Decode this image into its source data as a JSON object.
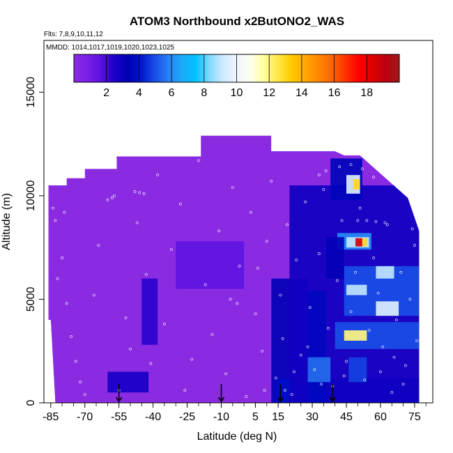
{
  "chart_data": {
    "type": "heatmap",
    "title": "ATOM3 Northbound x2ButONO2_WAS",
    "flights_note": "Flts: 7,8,9,10,11,12",
    "dates_note": "MMDD: 1014,1017,1019,1020,1023,1025",
    "xlabel": "Latitude (deg N)",
    "ylabel": "Altitude (m)",
    "xlim": [
      -88,
      83
    ],
    "ylim": [
      0,
      17500
    ],
    "x_ticks": [
      -85,
      -70,
      -55,
      -40,
      -25,
      -10,
      5,
      15,
      30,
      45,
      60,
      75
    ],
    "x_tick_labels": [
      "-85",
      "-70",
      "-55",
      "-40",
      "-25",
      "-10",
      "5",
      "15",
      "30",
      "45",
      "60",
      "75"
    ],
    "x_minor_ticks": [
      -80,
      -75,
      -65,
      -60,
      -50,
      -45,
      -35,
      -30,
      -20,
      -15,
      -5,
      0,
      10,
      20,
      25,
      35,
      40,
      50,
      55,
      65,
      70,
      80
    ],
    "y_ticks": [
      0,
      5000,
      10000,
      15000
    ],
    "y_tick_labels": [
      "0",
      "5000",
      "10000",
      "15000"
    ],
    "colorbar": {
      "min": 0,
      "max": 20,
      "ticks": [
        2,
        4,
        6,
        8,
        10,
        12,
        14,
        16,
        18
      ],
      "tick_labels": [
        "2",
        "4",
        "6",
        "8",
        "10",
        "12",
        "14",
        "16",
        "18"
      ],
      "colors": [
        "#8a2be2",
        "#7a1fe6",
        "#5a10e0",
        "#1a00c8",
        "#0000b4",
        "#0018d2",
        "#1a4ee6",
        "#2a82f4",
        "#1aaaf8",
        "#00c4ff",
        "#80d8ff",
        "#cfeaff",
        "#f0f4ff",
        "#fffff0",
        "#ffffa0",
        "#ffe84a",
        "#ffcc00",
        "#ffaa00",
        "#ff8800",
        "#ff6600",
        "#ff3300",
        "#ff0000",
        "#dd0000",
        "#bb0010",
        "#a01818"
      ]
    },
    "envelope_top": [
      {
        "lat": -86,
        "alt": 10500
      },
      {
        "lat": -78,
        "alt": 10500
      },
      {
        "lat": -78,
        "alt": 10850
      },
      {
        "lat": -70,
        "alt": 10850
      },
      {
        "lat": -70,
        "alt": 11300
      },
      {
        "lat": -56,
        "alt": 11300
      },
      {
        "lat": -56,
        "alt": 11900
      },
      {
        "lat": -19,
        "alt": 11900
      },
      {
        "lat": -19,
        "alt": 12900
      },
      {
        "lat": 12,
        "alt": 12900
      },
      {
        "lat": 12,
        "alt": 12150
      },
      {
        "lat": 40,
        "alt": 12150
      },
      {
        "lat": 44,
        "alt": 11950
      },
      {
        "lat": 51,
        "alt": 11950
      },
      {
        "lat": 72,
        "alt": 9900
      },
      {
        "lat": 77,
        "alt": 8300
      },
      {
        "lat": 77,
        "alt": 0
      }
    ],
    "envelope_bottom_left": [
      {
        "lat": -86,
        "alt": 10500
      },
      {
        "lat": -86,
        "alt": 4000
      },
      {
        "lat": -85,
        "alt": 4000
      },
      {
        "lat": -83,
        "alt": 0
      }
    ],
    "features": [
      {
        "lat_min": -60,
        "lat_max": -42,
        "alt_min": 500,
        "alt_max": 1500,
        "value": 2.6
      },
      {
        "lat_min": -45,
        "lat_max": -38,
        "alt_min": 2800,
        "alt_max": 6000,
        "value": 2.3
      },
      {
        "lat_min": -30,
        "lat_max": 0,
        "alt_min": 5500,
        "alt_max": 7800,
        "value": 1.5
      },
      {
        "lat_min": 12,
        "lat_max": 28,
        "alt_min": 0,
        "alt_max": 6000,
        "value": 3.2
      },
      {
        "lat_min": 14,
        "lat_max": 77,
        "alt_min": 0,
        "alt_max": 1200,
        "value": 3.8
      },
      {
        "lat_min": 20,
        "lat_max": 77,
        "alt_min": 0,
        "alt_max": 10500,
        "value": 2.8
      },
      {
        "lat_min": 28,
        "lat_max": 36,
        "alt_min": 0,
        "alt_max": 5400,
        "value": 3.6
      },
      {
        "lat_min": 28,
        "lat_max": 38,
        "alt_min": 1000,
        "alt_max": 2200,
        "value": 5.5
      },
      {
        "lat_min": 38,
        "lat_max": 52,
        "alt_min": 9800,
        "alt_max": 11800,
        "value": 3.5
      },
      {
        "lat_min": 45,
        "lat_max": 51,
        "alt_min": 10100,
        "alt_max": 11000,
        "value": 9.5
      },
      {
        "lat_min": 48,
        "lat_max": 51,
        "alt_min": 10300,
        "alt_max": 10800,
        "value": 13.0
      },
      {
        "lat_min": 41,
        "lat_max": 56,
        "alt_min": 7400,
        "alt_max": 8200,
        "value": 6.0
      },
      {
        "lat_min": 45,
        "lat_max": 55,
        "alt_min": 7500,
        "alt_max": 8000,
        "value": 9.0
      },
      {
        "lat_min": 49,
        "lat_max": 52,
        "alt_min": 7550,
        "alt_max": 7950,
        "value": 18.5
      },
      {
        "lat_min": 52,
        "lat_max": 54,
        "alt_min": 7550,
        "alt_max": 7950,
        "value": 13.0
      },
      {
        "lat_min": 44,
        "lat_max": 77,
        "alt_min": 4200,
        "alt_max": 6600,
        "value": 5.0
      },
      {
        "lat_min": 45,
        "lat_max": 54,
        "alt_min": 5200,
        "alt_max": 5700,
        "value": 9.0
      },
      {
        "lat_min": 58,
        "lat_max": 68,
        "alt_min": 4200,
        "alt_max": 4900,
        "value": 9.5
      },
      {
        "lat_min": 40,
        "lat_max": 77,
        "alt_min": 2600,
        "alt_max": 3900,
        "value": 5.0
      },
      {
        "lat_min": 44,
        "lat_max": 54,
        "alt_min": 3000,
        "alt_max": 3500,
        "value": 12.0
      },
      {
        "lat_min": 58,
        "lat_max": 66,
        "alt_min": 6000,
        "alt_max": 6600,
        "value": 9.0
      },
      {
        "lat_min": 46,
        "lat_max": 54,
        "alt_min": 1000,
        "alt_max": 2200,
        "value": 4.8
      },
      {
        "lat_min": 36,
        "lat_max": 44,
        "alt_min": 6000,
        "alt_max": 8000,
        "value": 3.2
      }
    ],
    "sample_points": [
      {
        "lat": -84,
        "alt": 9400
      },
      {
        "lat": -83,
        "alt": 8800
      },
      {
        "lat": -79,
        "alt": 9200
      },
      {
        "lat": -80,
        "alt": 7000
      },
      {
        "lat": -82,
        "alt": 6000
      },
      {
        "lat": -78,
        "alt": 4800
      },
      {
        "lat": -76,
        "alt": 3200
      },
      {
        "lat": -74,
        "alt": 2000
      },
      {
        "lat": -72,
        "alt": 1000
      },
      {
        "lat": -70,
        "alt": 400
      },
      {
        "lat": -66,
        "alt": 5200
      },
      {
        "lat": -64,
        "alt": 7600
      },
      {
        "lat": -60,
        "alt": 9800
      },
      {
        "lat": -58,
        "alt": 9900
      },
      {
        "lat": -57,
        "alt": 10000
      },
      {
        "lat": -55,
        "alt": 600
      },
      {
        "lat": -52,
        "alt": 4100
      },
      {
        "lat": -50,
        "alt": 2600
      },
      {
        "lat": -47,
        "alt": 8700
      },
      {
        "lat": -43,
        "alt": 6200
      },
      {
        "lat": -41,
        "alt": 1900
      },
      {
        "lat": -38,
        "alt": 11000
      },
      {
        "lat": -35,
        "alt": 3800
      },
      {
        "lat": -32,
        "alt": 7400
      },
      {
        "lat": -28,
        "alt": 9600
      },
      {
        "lat": -26,
        "alt": 600
      },
      {
        "lat": -23,
        "alt": 2100
      },
      {
        "lat": -20,
        "alt": 11700
      },
      {
        "lat": -17,
        "alt": 5700
      },
      {
        "lat": -14,
        "alt": 3300
      },
      {
        "lat": -11,
        "alt": 8300
      },
      {
        "lat": -8,
        "alt": 1400
      },
      {
        "lat": -5,
        "alt": 10400
      },
      {
        "lat": -2,
        "alt": 6600
      },
      {
        "lat": 1,
        "alt": 300
      },
      {
        "lat": 3,
        "alt": 9200
      },
      {
        "lat": 5,
        "alt": 4300
      },
      {
        "lat": 8,
        "alt": 2500
      },
      {
        "lat": 10,
        "alt": 7800
      },
      {
        "lat": 12,
        "alt": 10700
      },
      {
        "lat": 14,
        "alt": 1200
      },
      {
        "lat": 16,
        "alt": 5200
      },
      {
        "lat": 17,
        "alt": 3100
      },
      {
        "lat": 19,
        "alt": 8600
      },
      {
        "lat": 21,
        "alt": 400
      },
      {
        "lat": 23,
        "alt": 6900
      },
      {
        "lat": 25,
        "alt": 2300
      },
      {
        "lat": 27,
        "alt": 9700
      },
      {
        "lat": 29,
        "alt": 4600
      },
      {
        "lat": 31,
        "alt": 1600
      },
      {
        "lat": 33,
        "alt": 7200
      },
      {
        "lat": 35,
        "alt": 10300
      },
      {
        "lat": 37,
        "alt": 3600
      },
      {
        "lat": 39,
        "alt": 800
      },
      {
        "lat": 41,
        "alt": 5900
      },
      {
        "lat": 43,
        "alt": 8800
      },
      {
        "lat": 45,
        "alt": 2000
      },
      {
        "lat": 47,
        "alt": 4400
      },
      {
        "lat": 49,
        "alt": 6300
      },
      {
        "lat": 51,
        "alt": 9400
      },
      {
        "lat": 53,
        "alt": 1100
      },
      {
        "lat": 55,
        "alt": 3500
      },
      {
        "lat": 57,
        "alt": 7000
      },
      {
        "lat": 59,
        "alt": 5300
      },
      {
        "lat": 61,
        "alt": 2700
      },
      {
        "lat": 63,
        "alt": 8600
      },
      {
        "lat": 65,
        "alt": 500
      },
      {
        "lat": 67,
        "alt": 4000
      },
      {
        "lat": 69,
        "alt": 6300
      },
      {
        "lat": 71,
        "alt": 1800
      },
      {
        "lat": 73,
        "alt": 5000
      },
      {
        "lat": 75,
        "alt": 7600
      },
      {
        "lat": 76,
        "alt": 3000
      },
      {
        "lat": 74,
        "alt": 8400
      },
      {
        "lat": 62,
        "alt": 8700
      },
      {
        "lat": 58,
        "alt": 8750
      },
      {
        "lat": 54,
        "alt": 8800
      },
      {
        "lat": 50,
        "alt": 8800
      },
      {
        "lat": -48,
        "alt": 10200
      },
      {
        "lat": -46,
        "alt": 10150
      },
      {
        "lat": -44,
        "alt": 10100
      },
      {
        "lat": 33,
        "alt": 11000
      },
      {
        "lat": 36,
        "alt": 11200
      },
      {
        "lat": 42,
        "alt": 11400
      },
      {
        "lat": 47,
        "alt": 11500
      },
      {
        "lat": 52,
        "alt": 11300
      },
      {
        "lat": 57,
        "alt": 10900
      },
      {
        "lat": -6,
        "alt": 5000
      },
      {
        "lat": -3,
        "alt": 4800
      },
      {
        "lat": 6,
        "alt": 6500
      },
      {
        "lat": 9,
        "alt": 600
      },
      {
        "lat": 18,
        "alt": 600
      },
      {
        "lat": 22,
        "alt": 1500
      },
      {
        "lat": 28,
        "alt": 2700
      },
      {
        "lat": 34,
        "alt": 900
      },
      {
        "lat": 44,
        "alt": 1300
      },
      {
        "lat": 60,
        "alt": 1500
      },
      {
        "lat": 66,
        "alt": 2200
      },
      {
        "lat": 70,
        "alt": 900
      }
    ],
    "arrows": [
      {
        "lat": -55,
        "alt_top": 900,
        "alt_bottom": 0
      },
      {
        "lat": -10,
        "alt_top": 900,
        "alt_bottom": 0
      },
      {
        "lat": 16,
        "alt_top": 900,
        "alt_bottom": 0
      },
      {
        "lat": 39,
        "alt_top": 900,
        "alt_bottom": 0
      }
    ],
    "background": "#8a2be2",
    "grid": false,
    "legend": "colorbar-top"
  }
}
